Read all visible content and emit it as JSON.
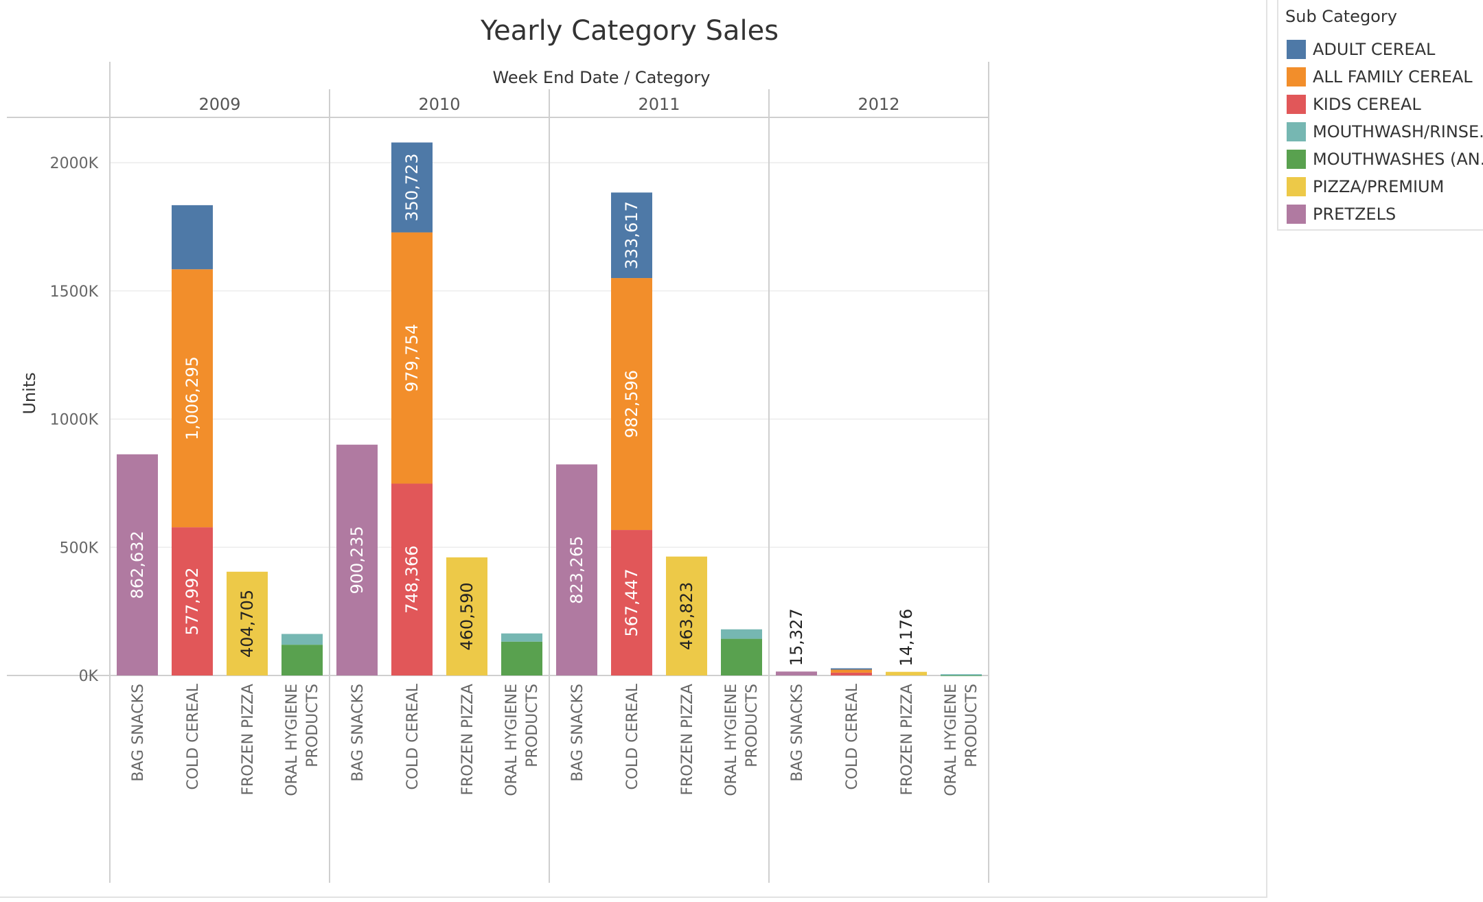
{
  "chart_data": {
    "type": "bar",
    "stacked": true,
    "title": "Yearly Category Sales",
    "column_header": "Week End Date / Category",
    "ylabel": "Units",
    "ylim": [
      0,
      2200000
    ],
    "y_ticks": [
      0,
      500000,
      1000000,
      1500000,
      2000000
    ],
    "y_tick_labels": [
      "0K",
      "500K",
      "1000K",
      "1500K",
      "2000K"
    ],
    "grid": true,
    "years": [
      "2009",
      "2010",
      "2011",
      "2012"
    ],
    "categories": [
      "BAG SNACKS",
      "COLD CEREAL",
      "FROZEN PIZZA",
      "ORAL HYGIENE PRODUCTS"
    ],
    "category_label_lines": [
      [
        "BAG SNACKS"
      ],
      [
        "COLD CEREAL"
      ],
      [
        "FROZEN PIZZA"
      ],
      [
        "ORAL HYGIENE",
        "PRODUCTS"
      ]
    ],
    "series": [
      {
        "name": "ADULT CEREAL",
        "color": "#4e79a7",
        "values": [
          [
            0,
            250000,
            0,
            0
          ],
          [
            0,
            350723,
            0,
            0
          ],
          [
            0,
            333617,
            0,
            0
          ],
          [
            0,
            3000,
            0,
            0
          ]
        ],
        "labels": [
          [
            null,
            null,
            null,
            null
          ],
          [
            null,
            "350,723",
            null,
            null
          ],
          [
            null,
            "333,617",
            null,
            null
          ],
          [
            null,
            null,
            null,
            null
          ]
        ]
      },
      {
        "name": "ALL FAMILY CEREAL",
        "color": "#f28e2b",
        "values": [
          [
            0,
            1006295,
            0,
            0
          ],
          [
            0,
            979754,
            0,
            0
          ],
          [
            0,
            982596,
            0,
            0
          ],
          [
            0,
            14000,
            0,
            0
          ]
        ],
        "labels": [
          [
            null,
            "1,006,295",
            null,
            null
          ],
          [
            null,
            "979,754",
            null,
            null
          ],
          [
            null,
            "982,596",
            null,
            null
          ],
          [
            null,
            null,
            null,
            null
          ]
        ]
      },
      {
        "name": "KIDS CEREAL",
        "color": "#e15759",
        "values": [
          [
            0,
            577992,
            0,
            0
          ],
          [
            0,
            748366,
            0,
            0
          ],
          [
            0,
            567447,
            0,
            0
          ],
          [
            0,
            11000,
            0,
            0
          ]
        ],
        "labels": [
          [
            null,
            "577,992",
            null,
            null
          ],
          [
            null,
            "748,366",
            null,
            null
          ],
          [
            null,
            "567,447",
            null,
            null
          ],
          [
            null,
            null,
            null,
            null
          ]
        ]
      },
      {
        "name": "MOUTHWASH/RINSE..",
        "color": "#76b7b2",
        "values": [
          [
            0,
            0,
            0,
            42000
          ],
          [
            0,
            0,
            0,
            32000
          ],
          [
            0,
            0,
            0,
            37000
          ],
          [
            0,
            0,
            0,
            2000
          ]
        ],
        "labels": [
          [
            null,
            null,
            null,
            null
          ],
          [
            null,
            null,
            null,
            null
          ],
          [
            null,
            null,
            null,
            null
          ],
          [
            null,
            null,
            null,
            null
          ]
        ]
      },
      {
        "name": "MOUTHWASHES (AN..",
        "color": "#59a14f",
        "values": [
          [
            0,
            0,
            0,
            120000
          ],
          [
            0,
            0,
            0,
            132000
          ],
          [
            0,
            0,
            0,
            143000
          ],
          [
            0,
            0,
            0,
            3000
          ]
        ],
        "labels": [
          [
            null,
            null,
            null,
            null
          ],
          [
            null,
            null,
            null,
            null
          ],
          [
            null,
            null,
            null,
            null
          ],
          [
            null,
            null,
            null,
            null
          ]
        ]
      },
      {
        "name": "PIZZA/PREMIUM",
        "color": "#edc948",
        "values": [
          [
            0,
            0,
            404705,
            0
          ],
          [
            0,
            0,
            460590,
            0
          ],
          [
            0,
            0,
            463823,
            0
          ],
          [
            0,
            0,
            14176,
            0
          ]
        ],
        "labels": [
          [
            null,
            null,
            "404,705",
            null
          ],
          [
            null,
            null,
            "460,590",
            null
          ],
          [
            null,
            null,
            "463,823",
            null
          ],
          [
            null,
            null,
            "14,176",
            null
          ]
        ]
      },
      {
        "name": "PRETZELS",
        "color": "#b07aa1",
        "values": [
          [
            862632,
            0,
            0,
            0
          ],
          [
            900235,
            0,
            0,
            0
          ],
          [
            823265,
            0,
            0,
            0
          ],
          [
            15327,
            0,
            0,
            0
          ]
        ],
        "labels": [
          [
            "862,632",
            null,
            null,
            null
          ],
          [
            "900,235",
            null,
            null,
            null
          ],
          [
            "823,265",
            null,
            null,
            null
          ],
          [
            "15,327",
            null,
            null,
            null
          ]
        ]
      }
    ]
  },
  "legend": {
    "title": "Sub Category",
    "position": "top-right"
  }
}
